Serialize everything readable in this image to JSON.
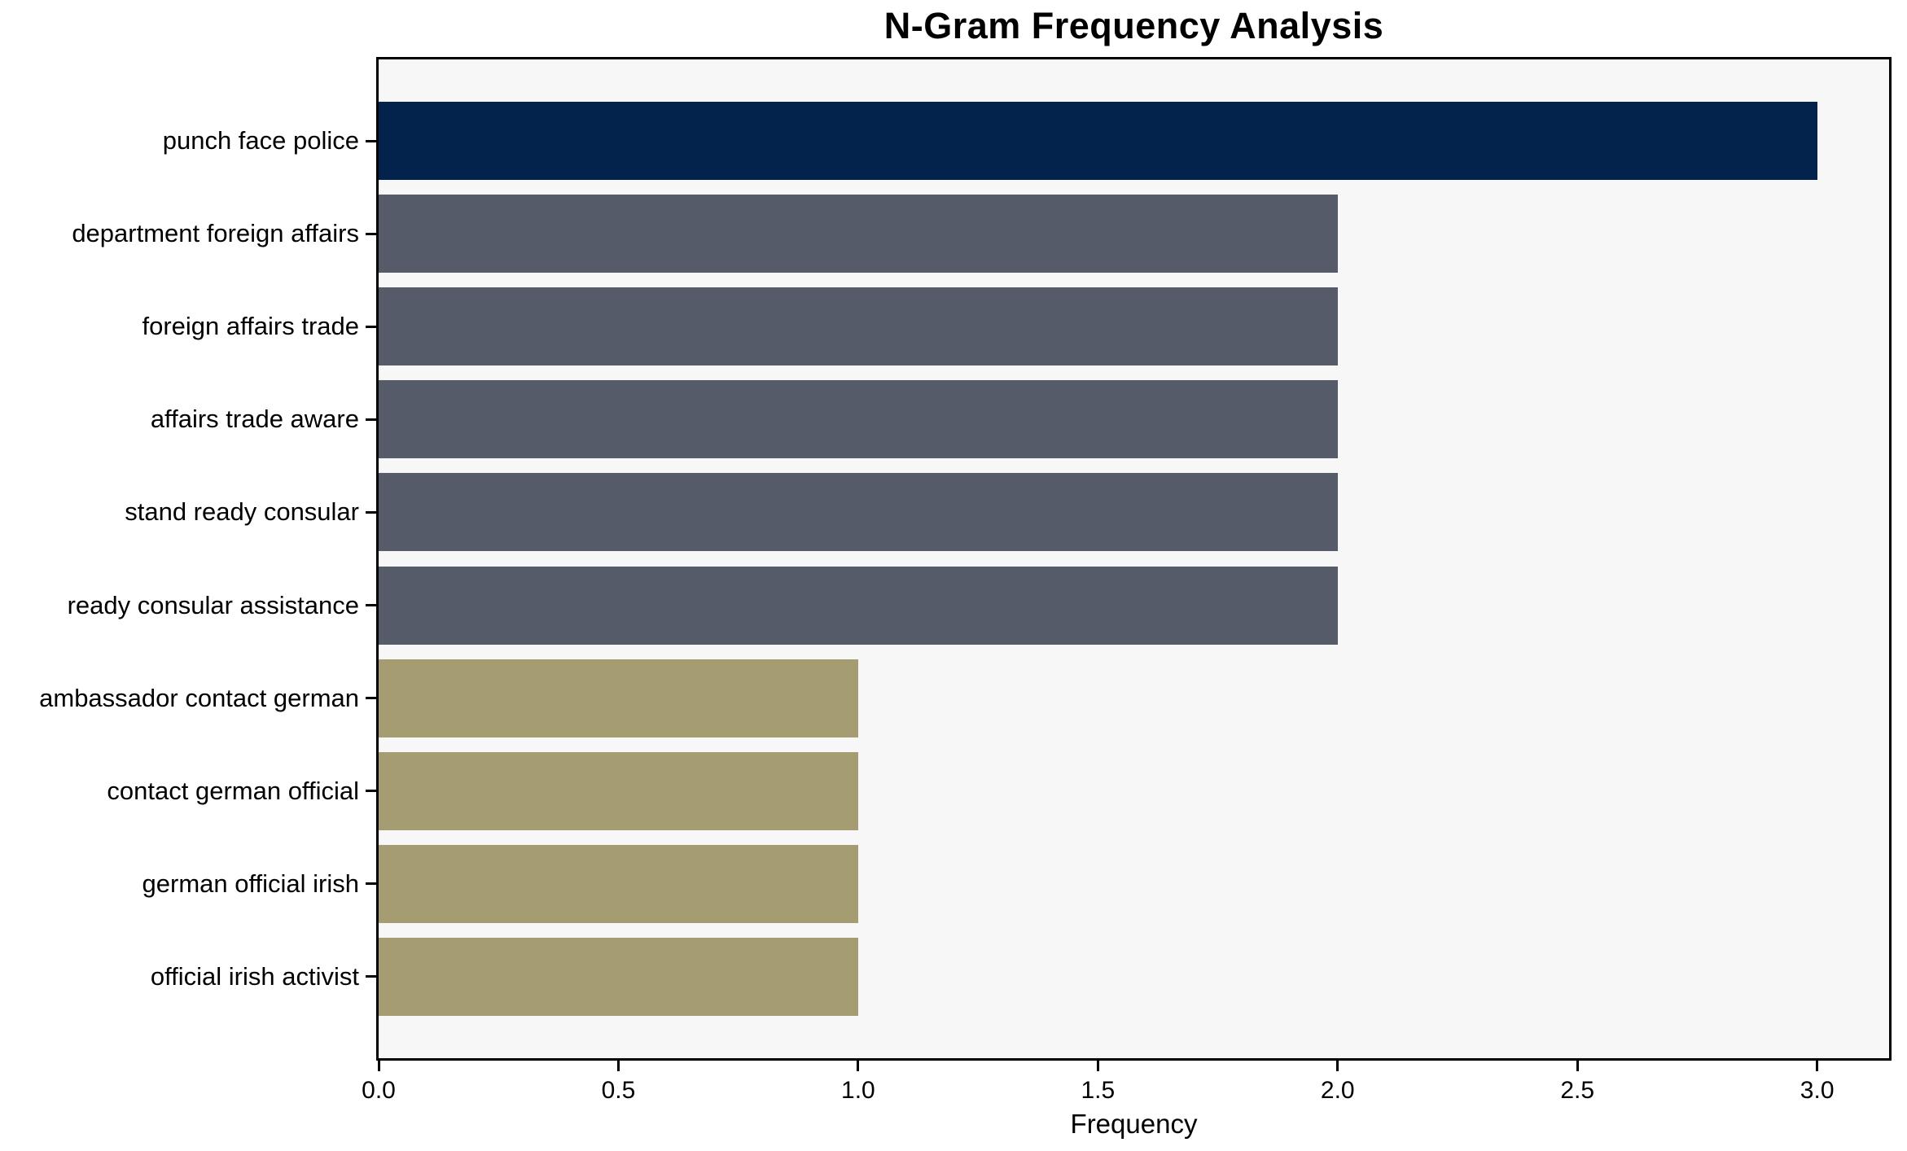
{
  "chart_data": {
    "type": "bar",
    "orientation": "horizontal",
    "title": "N-Gram Frequency Analysis",
    "xlabel": "Frequency",
    "ylabel": "",
    "categories": [
      "punch face police",
      "department foreign affairs",
      "foreign affairs trade",
      "affairs trade aware",
      "stand ready consular",
      "ready consular assistance",
      "ambassador contact german",
      "contact german official",
      "german official irish",
      "official irish activist"
    ],
    "values": [
      3,
      2,
      2,
      2,
      2,
      2,
      1,
      1,
      1,
      1
    ],
    "bar_colors": [
      "#03234d",
      "#565b69",
      "#565b69",
      "#565b69",
      "#565b69",
      "#565b69",
      "#a59c72",
      "#a59c72",
      "#a59c72",
      "#a59c72"
    ],
    "xlim": [
      0,
      3.15
    ],
    "xtick_values": [
      0,
      0.5,
      1,
      1.5,
      2,
      2.5,
      3
    ],
    "xtick_labels": [
      "0.0",
      "0.5",
      "1.0",
      "1.5",
      "2.0",
      "2.5",
      "3.0"
    ],
    "grid": false,
    "legend": null,
    "colors": {
      "navy": "#03234d",
      "slate": "#565b69",
      "khaki": "#a59c72",
      "plot_background": "#f7f7f8",
      "figure_background": "#ffffff",
      "axis": "#000000"
    }
  }
}
